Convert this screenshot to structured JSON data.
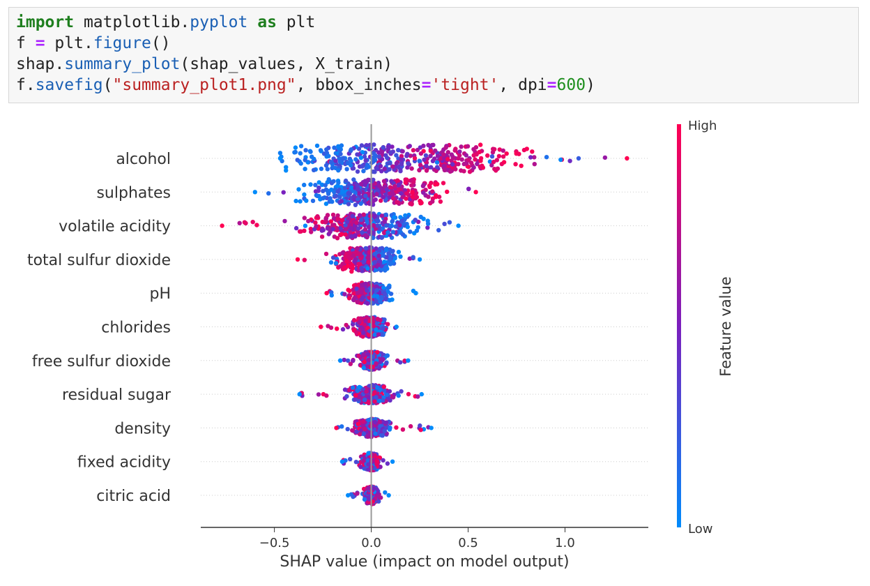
{
  "code": {
    "lines": [
      [
        {
          "t": "import",
          "c": "kw"
        },
        {
          "t": " matplotlib.",
          "c": "plain"
        },
        {
          "t": "pyplot",
          "c": "fn"
        },
        {
          "t": " ",
          "c": "plain"
        },
        {
          "t": "as",
          "c": "kw"
        },
        {
          "t": " plt",
          "c": "plain"
        }
      ],
      [
        {
          "t": "f ",
          "c": "plain"
        },
        {
          "t": "=",
          "c": "op"
        },
        {
          "t": " plt.",
          "c": "plain"
        },
        {
          "t": "figure",
          "c": "fn"
        },
        {
          "t": "()",
          "c": "plain"
        }
      ],
      [
        {
          "t": "shap.",
          "c": "plain"
        },
        {
          "t": "summary_plot",
          "c": "fn"
        },
        {
          "t": "(shap_values, X_train)",
          "c": "plain"
        }
      ],
      [
        {
          "t": "f.",
          "c": "plain"
        },
        {
          "t": "savefig",
          "c": "fn"
        },
        {
          "t": "(",
          "c": "plain"
        },
        {
          "t": "\"summary_plot1.png\"",
          "c": "str"
        },
        {
          "t": ", bbox_inches",
          "c": "plain"
        },
        {
          "t": "=",
          "c": "op"
        },
        {
          "t": "'tight'",
          "c": "str"
        },
        {
          "t": ", dpi",
          "c": "plain"
        },
        {
          "t": "=",
          "c": "op"
        },
        {
          "t": "600",
          "c": "num"
        },
        {
          "t": ")",
          "c": "plain"
        }
      ]
    ]
  },
  "chart_data": {
    "type": "scatter",
    "subtype": "shap-beeswarm",
    "title": "",
    "xlabel": "SHAP value (impact on model output)",
    "ylabel": "",
    "xlim": [
      -0.88,
      1.43
    ],
    "xticks": [
      -0.5,
      0.0,
      0.5,
      1.0
    ],
    "xtick_labels": [
      "−0.5",
      "0.0",
      "0.5",
      "1.0"
    ],
    "colorbar": {
      "label": "Feature value",
      "high_label": "High",
      "low_label": "Low",
      "high_color": "#ff0052",
      "low_color": "#008bfb"
    },
    "features": [
      {
        "name": "alcohol",
        "min": -0.47,
        "max": 1.32,
        "low_center": -0.28,
        "high_center": 0.6,
        "spread": 0.9
      },
      {
        "name": "sulphates",
        "min": -0.6,
        "max": 0.54,
        "low_center": -0.22,
        "high_center": 0.25,
        "spread": 0.8
      },
      {
        "name": "volatile acidity",
        "min": -0.77,
        "max": 0.45,
        "low_center": 0.1,
        "high_center": -0.2,
        "spread": 0.75
      },
      {
        "name": "total sulfur dioxide",
        "min": -0.38,
        "max": 0.25,
        "low_center": 0.05,
        "high_center": -0.1,
        "spread": 0.7
      },
      {
        "name": "pH",
        "min": -0.23,
        "max": 0.23,
        "low_center": 0.03,
        "high_center": -0.05,
        "spread": 0.5
      },
      {
        "name": "chlorides",
        "min": -0.26,
        "max": 0.13,
        "low_center": 0.02,
        "high_center": -0.03,
        "spread": 0.45
      },
      {
        "name": "free sulfur dioxide",
        "min": -0.16,
        "max": 0.19,
        "low_center": 0.0,
        "high_center": 0.0,
        "spread": 0.35
      },
      {
        "name": "residual sugar",
        "min": -0.37,
        "max": 0.26,
        "low_center": 0.0,
        "high_center": 0.0,
        "spread": 0.35
      },
      {
        "name": "density",
        "min": -0.18,
        "max": 0.31,
        "low_center": 0.02,
        "high_center": -0.02,
        "spread": 0.35
      },
      {
        "name": "fixed acidity",
        "min": -0.15,
        "max": 0.11,
        "low_center": 0.0,
        "high_center": 0.0,
        "spread": 0.3
      },
      {
        "name": "citric acid",
        "min": -0.12,
        "max": 0.09,
        "low_center": 0.0,
        "high_center": 0.0,
        "spread": 0.3
      }
    ]
  }
}
